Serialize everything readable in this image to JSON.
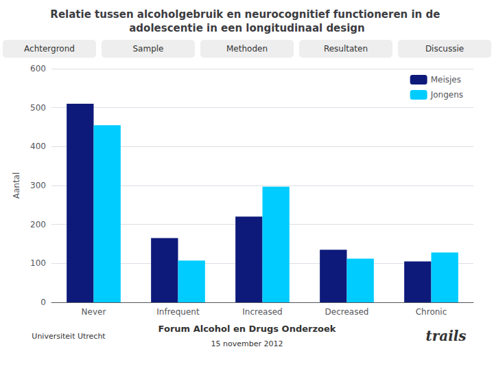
{
  "chart_data": {
    "type": "bar",
    "title": "Relatie tussen alcoholgebruik en neurocognitief functioneren in de adolescentie in een longitudinaal design",
    "categories": [
      "Never",
      "Infrequent",
      "Increased",
      "Decreased",
      "Chronic"
    ],
    "series": [
      {
        "name": "Meisjes",
        "color": "#0e1a7a",
        "values": [
          510,
          165,
          220,
          135,
          105
        ]
      },
      {
        "name": "Jongens",
        "color": "#00ccff",
        "values": [
          455,
          107,
          297,
          112,
          128
        ]
      }
    ],
    "ylabel": "Aantal",
    "ylim": [
      0,
      600
    ],
    "yticks": [
      0,
      100,
      200,
      300,
      400,
      500,
      600
    ],
    "grid": true,
    "legend": "upper right",
    "annotations": [
      "Achtergrond",
      "Sample",
      "Methoden",
      "Resultaten",
      "Discussie",
      "Forum Alcohol en Drugs Onderzoek",
      "15 november 2012",
      "trails",
      "Universiteit Utrecht"
    ]
  }
}
